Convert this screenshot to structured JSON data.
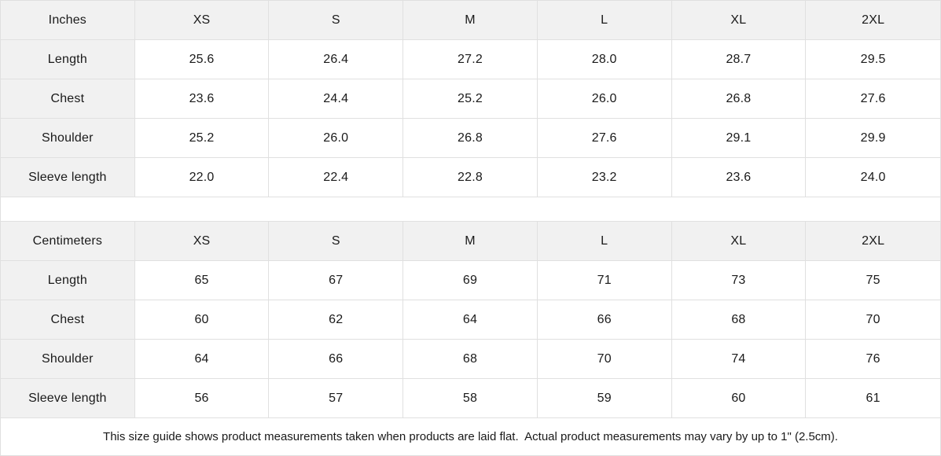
{
  "tables": [
    {
      "id": "inches",
      "unit_label": "Inches",
      "header": [
        "Inches",
        "XS",
        "S",
        "M",
        "L",
        "XL",
        "2XL"
      ],
      "rows": [
        {
          "label": "Length",
          "values": [
            "25.6",
            "26.4",
            "27.2",
            "28.0",
            "28.7",
            "29.5"
          ]
        },
        {
          "label": "Chest",
          "values": [
            "23.6",
            "24.4",
            "25.2",
            "26.0",
            "26.8",
            "27.6"
          ]
        },
        {
          "label": "Shoulder",
          "values": [
            "25.2",
            "26.0",
            "26.8",
            "27.6",
            "29.1",
            "29.9"
          ]
        },
        {
          "label": "Sleeve length",
          "values": [
            "22.0",
            "22.4",
            "22.8",
            "23.2",
            "23.6",
            "24.0"
          ]
        }
      ]
    },
    {
      "id": "centimeters",
      "unit_label": "Centimeters",
      "header": [
        "Centimeters",
        "XS",
        "S",
        "M",
        "L",
        "XL",
        "2XL"
      ],
      "rows": [
        {
          "label": "Length",
          "values": [
            "65",
            "67",
            "69",
            "71",
            "73",
            "75"
          ]
        },
        {
          "label": "Chest",
          "values": [
            "60",
            "62",
            "64",
            "66",
            "68",
            "70"
          ]
        },
        {
          "label": "Shoulder",
          "values": [
            "64",
            "66",
            "68",
            "70",
            "74",
            "76"
          ]
        },
        {
          "label": "Sleeve length",
          "values": [
            "56",
            "57",
            "58",
            "59",
            "60",
            "61"
          ]
        }
      ]
    }
  ],
  "footer": {
    "note": "This size guide shows product measurements taken when products are laid flat.  Actual product measurements may vary by up to 1\" (2.5cm)."
  },
  "colors": {
    "header_bg": "#f1f1f1",
    "border": "#e0e0e0",
    "text": "#1a1a1a"
  }
}
